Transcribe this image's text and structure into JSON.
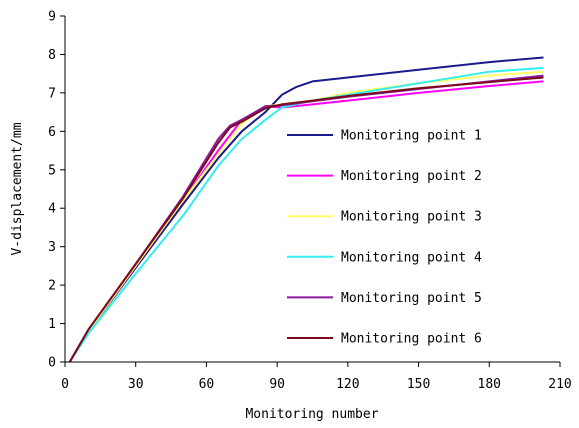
{
  "chart_data": {
    "type": "line",
    "xlabel": "Monitoring number",
    "ylabel": "V-displacement/mm",
    "xlim": [
      0,
      210
    ],
    "ylim": [
      0,
      9
    ],
    "xticks": [
      "0",
      "30",
      "60",
      "90",
      "120",
      "150",
      "180",
      "210"
    ],
    "yticks": [
      "0",
      "1",
      "2",
      "3",
      "4",
      "5",
      "6",
      "7",
      "8",
      "9"
    ],
    "grid": false,
    "legend_position": "right",
    "series": [
      {
        "name": "Monitoring point 1",
        "color": "#1a1a8c",
        "points": [
          [
            2,
            0
          ],
          [
            10,
            0.8
          ],
          [
            30,
            2.45
          ],
          [
            50,
            4.1
          ],
          [
            65,
            5.3
          ],
          [
            75,
            6.0
          ],
          [
            85,
            6.5
          ],
          [
            92,
            6.95
          ],
          [
            98,
            7.15
          ],
          [
            105,
            7.3
          ],
          [
            120,
            7.4
          ],
          [
            150,
            7.6
          ],
          [
            180,
            7.8
          ],
          [
            203,
            7.92
          ]
        ]
      },
      {
        "name": "Monitoring point 2",
        "color": "#ff00ff",
        "points": [
          [
            2,
            0
          ],
          [
            10,
            0.8
          ],
          [
            30,
            2.5
          ],
          [
            50,
            4.2
          ],
          [
            65,
            5.5
          ],
          [
            75,
            6.3
          ],
          [
            85,
            6.65
          ],
          [
            92,
            6.62
          ],
          [
            105,
            6.7
          ],
          [
            120,
            6.8
          ],
          [
            150,
            7.0
          ],
          [
            180,
            7.18
          ],
          [
            203,
            7.3
          ]
        ]
      },
      {
        "name": "Monitoring point 3",
        "color": "#ffff66",
        "points": [
          [
            2,
            0
          ],
          [
            10,
            0.8
          ],
          [
            30,
            2.5
          ],
          [
            50,
            4.2
          ],
          [
            65,
            5.4
          ],
          [
            75,
            6.2
          ],
          [
            85,
            6.65
          ],
          [
            92,
            6.7
          ],
          [
            105,
            6.8
          ],
          [
            120,
            7.0
          ],
          [
            150,
            7.25
          ],
          [
            180,
            7.45
          ],
          [
            203,
            7.55
          ]
        ]
      },
      {
        "name": "Monitoring point 4",
        "color": "#33eeee",
        "points": [
          [
            2,
            0
          ],
          [
            10,
            0.75
          ],
          [
            30,
            2.3
          ],
          [
            50,
            3.8
          ],
          [
            65,
            5.1
          ],
          [
            75,
            5.8
          ],
          [
            85,
            6.3
          ],
          [
            92,
            6.62
          ],
          [
            105,
            6.8
          ],
          [
            120,
            6.95
          ],
          [
            150,
            7.25
          ],
          [
            180,
            7.55
          ],
          [
            203,
            7.65
          ]
        ]
      },
      {
        "name": "Monitoring point 5",
        "color": "#8a1a9a",
        "points": [
          [
            2,
            0
          ],
          [
            10,
            0.85
          ],
          [
            30,
            2.55
          ],
          [
            50,
            4.3
          ],
          [
            65,
            5.8
          ],
          [
            70,
            6.15
          ],
          [
            75,
            6.3
          ],
          [
            85,
            6.65
          ],
          [
            92,
            6.68
          ],
          [
            105,
            6.78
          ],
          [
            120,
            6.9
          ],
          [
            150,
            7.1
          ],
          [
            180,
            7.3
          ],
          [
            203,
            7.45
          ]
        ]
      },
      {
        "name": "Monitoring point 6",
        "color": "#7a0a1a",
        "points": [
          [
            2,
            0
          ],
          [
            10,
            0.85
          ],
          [
            30,
            2.55
          ],
          [
            50,
            4.25
          ],
          [
            65,
            5.7
          ],
          [
            70,
            6.1
          ],
          [
            75,
            6.25
          ],
          [
            85,
            6.6
          ],
          [
            92,
            6.7
          ],
          [
            105,
            6.8
          ],
          [
            120,
            6.92
          ],
          [
            150,
            7.12
          ],
          [
            180,
            7.28
          ],
          [
            203,
            7.4
          ]
        ]
      }
    ]
  }
}
